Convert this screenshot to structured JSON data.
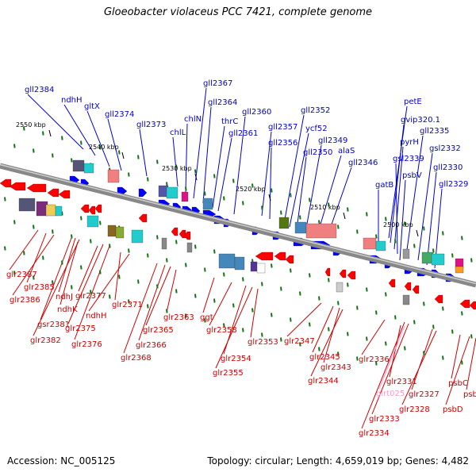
{
  "title": "Gloeobacter violaceus PCC 7421, complete genome",
  "footer": {
    "accession": "Accession: NC_005125",
    "stats": "Topology: circular; Length: 4,659,019 bp; Genes: 4,482"
  },
  "colors": {
    "forward_label": "#0000cc",
    "reverse_label": "#cc0000",
    "pseudo_label": "#ff99cc",
    "forward_arrow": "#0000ff",
    "reverse_arrow": "#ff0000",
    "axis": "#888888"
  },
  "scale_labels": [
    "2550 kbp",
    "2540 kbp",
    "2530 kbp",
    "2520 kbp",
    "2510 kbp",
    "2500 kbp"
  ],
  "forward_genes": [
    "gll2384",
    "ndhH",
    "gltX",
    "gll2374",
    "gll2373",
    "chlL",
    "chlN",
    "gll2367",
    "gll2364",
    "thrC",
    "gll2361",
    "gll2360",
    "gll2357",
    "gll2356",
    "gll2352",
    "ycf52",
    "gll2350",
    "gll2349",
    "alaS",
    "gll2346",
    "gatB",
    "petE",
    "gvip320.1",
    "pyrH",
    "gsl2339",
    "psbV",
    "gll2335",
    "gsl2332",
    "gll2330",
    "gll2329"
  ],
  "reverse_genes": [
    "glr2387",
    "glr2385",
    "glr2386",
    "ndhJ",
    "ndhK",
    "glr2377",
    "gsr2381",
    "glr2382",
    "glr2375",
    "glr2376",
    "glr2371",
    "ndhH",
    "glr2363",
    "glr2365",
    "glr2366",
    "glr2368",
    "ggt",
    "glr2358",
    "glr2354",
    "glr2355",
    "glr2353",
    "glr2347",
    "glr2345",
    "glr2343",
    "glr2344",
    "glr2336",
    "glr2331",
    "glr2327",
    "glr2328",
    "glr2333",
    "glr2334",
    "psbC",
    "psbA",
    "psbD"
  ],
  "pseudo_genes": [
    "glrt025"
  ]
}
